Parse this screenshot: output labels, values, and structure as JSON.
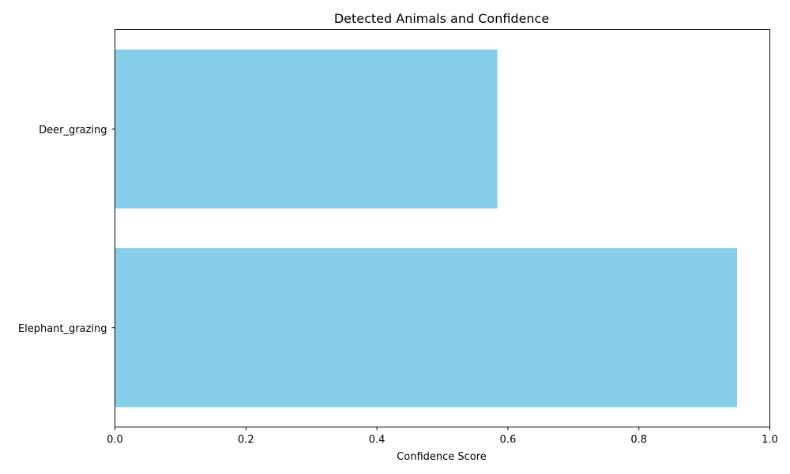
{
  "chart_data": {
    "type": "bar",
    "orientation": "horizontal",
    "title": "Detected Animals and Confidence",
    "xlabel": "Confidence Score",
    "ylabel": "",
    "xlim": [
      0,
      1
    ],
    "x_ticks": [
      "0.0",
      "0.2",
      "0.4",
      "0.6",
      "0.8",
      "1.0"
    ],
    "categories": [
      "Elephant_grazing",
      "Deer_grazing"
    ],
    "values": [
      0.95,
      0.584
    ],
    "bar_color": "#87ceeb",
    "grid": false,
    "legend": "none"
  }
}
